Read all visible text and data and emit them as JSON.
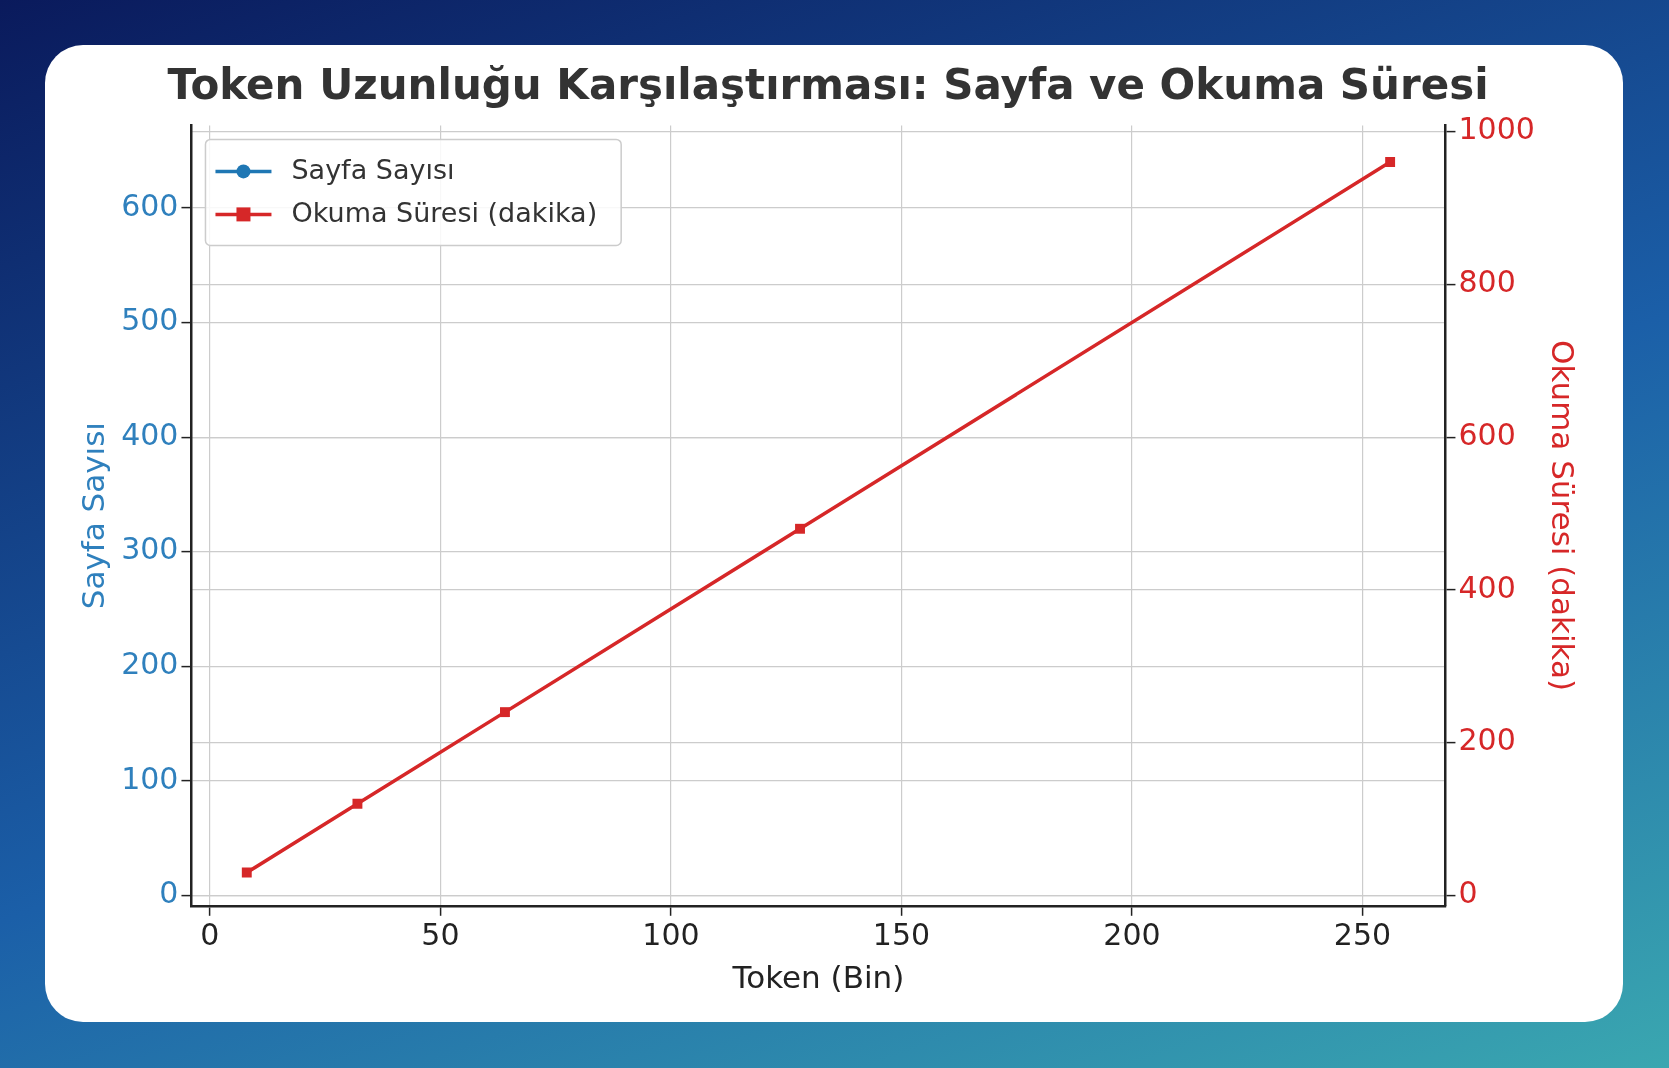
{
  "chart_data": {
    "type": "line",
    "title": "Token Uzunluğu Karşılaştırması: Sayfa ve Okuma Süresi",
    "xlabel": "Token (Bin)",
    "ylabel": "Sayfa Sayısı",
    "y2label": "Okuma Süresi (dakika)",
    "x": [
      8,
      32,
      64,
      128,
      256
    ],
    "series": [
      {
        "name": "Sayfa Sayısı",
        "color": "#1f77b4",
        "marker": "circle",
        "values": [
          null,
          null,
          null,
          null,
          null
        ]
      },
      {
        "name": "Okuma Süresi (dakika)",
        "color": "#d62728",
        "marker": "square",
        "axis": "y2",
        "values": [
          30,
          120,
          240,
          480,
          960
        ]
      }
    ],
    "xlim": [
      -4,
      268
    ],
    "xticks": [
      0,
      50,
      100,
      150,
      200,
      250
    ],
    "ylim": [
      -9,
      672
    ],
    "yticks": [
      0,
      100,
      200,
      300,
      400,
      500,
      600
    ],
    "y2lim": [
      -13.5,
      1008
    ],
    "y2ticks": [
      0,
      200,
      400,
      600,
      800,
      1000
    ],
    "grid": true,
    "legend": "top left",
    "line_style": "solid"
  }
}
